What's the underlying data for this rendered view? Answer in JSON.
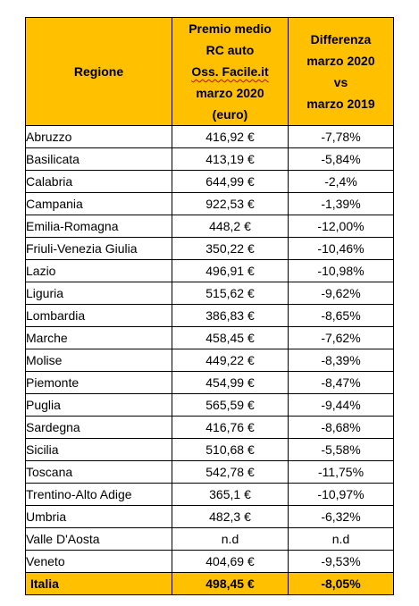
{
  "table": {
    "headers": {
      "region": "Regione",
      "premium_lines": [
        "Premio medio",
        "RC auto",
        "Oss. Facile.it",
        "marzo 2020",
        "(euro)"
      ],
      "diff_lines": [
        "Differenza",
        "marzo 2020",
        "vs",
        "marzo 2019"
      ]
    },
    "rows": [
      {
        "region": "Abruzzo",
        "premium": "416,92 €",
        "diff": "-7,78%"
      },
      {
        "region": "Basilicata",
        "premium": "413,19 €",
        "diff": "-5,84%"
      },
      {
        "region": "Calabria",
        "premium": "644,99 €",
        "diff": "-2,4%"
      },
      {
        "region": "Campania",
        "premium": "922,53 €",
        "diff": "-1,39%"
      },
      {
        "region": "Emilia-Romagna",
        "premium": "448,2 €",
        "diff": "-12,00%"
      },
      {
        "region": "Friuli-Venezia Giulia",
        "premium": "350,22 €",
        "diff": "-10,46%"
      },
      {
        "region": "Lazio",
        "premium": "496,91 €",
        "diff": "-10,98%"
      },
      {
        "region": "Liguria",
        "premium": "515,62 €",
        "diff": "-9,62%"
      },
      {
        "region": "Lombardia",
        "premium": "386,83 €",
        "diff": "-8,65%"
      },
      {
        "region": "Marche",
        "premium": "458,45 €",
        "diff": "-7,62%"
      },
      {
        "region": "Molise",
        "premium": "449,22 €",
        "diff": "-8,39%"
      },
      {
        "region": "Piemonte",
        "premium": "454,99 €",
        "diff": "-8,47%"
      },
      {
        "region": "Puglia",
        "premium": "565,59 €",
        "diff": "-9,44%"
      },
      {
        "region": "Sardegna",
        "premium": "416,76 €",
        "diff": "-8,68%"
      },
      {
        "region": "Sicilia",
        "premium": "510,68 €",
        "diff": "-5,58%"
      },
      {
        "region": "Toscana",
        "premium": "542,78 €",
        "diff": "-11,75%"
      },
      {
        "region": "Trentino-Alto Adige",
        "premium": "365,1 €",
        "diff": "-10,97%"
      },
      {
        "region": "Umbria",
        "premium": "482,3 €",
        "diff": "-6,32%"
      },
      {
        "region": "Valle D'Aosta",
        "premium": "n.d",
        "diff": "n.d"
      },
      {
        "region": "Veneto",
        "premium": "404,69 €",
        "diff": "-9,53%"
      }
    ],
    "total": {
      "region": "Italia",
      "premium": "498,45 €",
      "diff": "-8,05%"
    }
  },
  "colors": {
    "header_bg": "#ffc000",
    "total_bg": "#ffc000",
    "border": "#000000",
    "spellcheck_underline": "#d00000"
  }
}
